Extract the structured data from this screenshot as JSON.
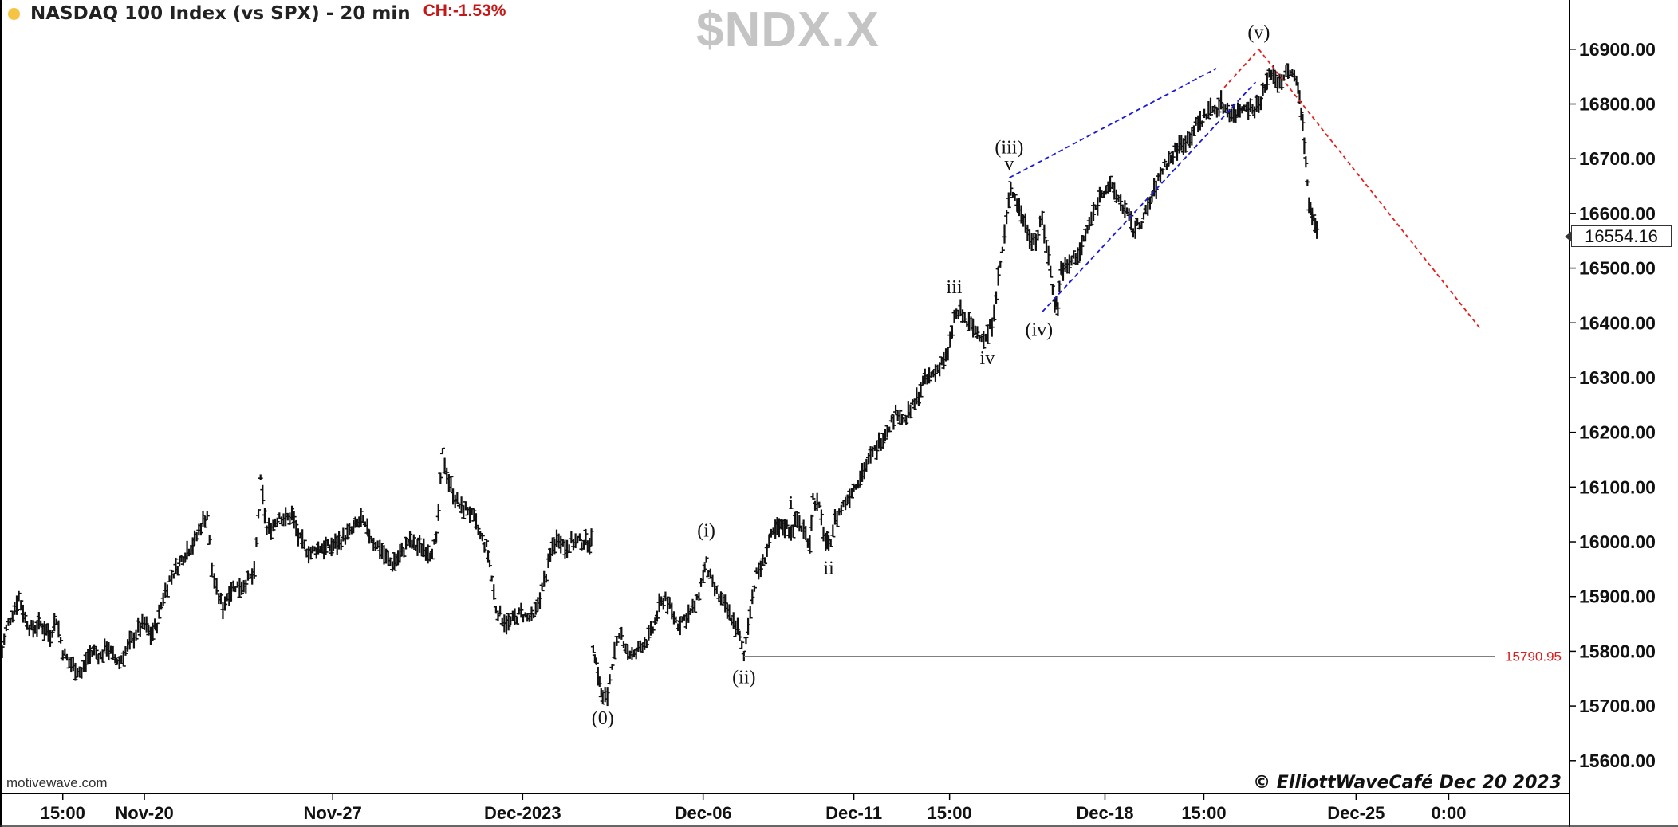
{
  "header": {
    "title": "NASDAQ 100 Index (vs SPX) - 20 min",
    "change": "CH:-1.53%"
  },
  "symbol": "$NDX.X",
  "watermark": "motivewave.com",
  "copyright": "© ElliottWaveCafé Dec 20 2023",
  "last_price": "16554.16",
  "colors": {
    "price_bars": "#111111",
    "channel": "#1a1ad6",
    "projection": "#e02020",
    "level_line": "#808080",
    "level_text": "#d42020",
    "axis": "#000000",
    "symbol_text": "#c4c4c4"
  },
  "chart_data": {
    "type": "line",
    "title": "NASDAQ 100 Index (vs SPX) - 20 min",
    "xlabel": "",
    "ylabel": "",
    "ylim": [
      15540,
      16990
    ],
    "y_ticks": [
      "16900.00",
      "16800.00",
      "16700.00",
      "16600.00",
      "16500.00",
      "16400.00",
      "16300.00",
      "16200.00",
      "16100.00",
      "16000.00",
      "15900.00",
      "15800.00",
      "15700.00",
      "15600.00"
    ],
    "x_tick_labels": [
      "15:00",
      "Nov-20",
      "Nov-27",
      "Dec-2023",
      "Dec-06",
      "Dec-11",
      "15:00",
      "Dec-18",
      "15:00",
      "Dec-25",
      "0:00"
    ],
    "x_index_range": [
      0,
      1000
    ],
    "x_ticks_index": [
      40,
      92,
      212,
      333,
      448,
      544,
      605,
      704,
      767,
      864,
      923
    ],
    "price_path": [
      [
        0,
        15780
      ],
      [
        4,
        15840
      ],
      [
        8,
        15870
      ],
      [
        12,
        15900
      ],
      [
        16,
        15860
      ],
      [
        20,
        15840
      ],
      [
        26,
        15850
      ],
      [
        32,
        15830
      ],
      [
        36,
        15860
      ],
      [
        40,
        15800
      ],
      [
        44,
        15780
      ],
      [
        48,
        15770
      ],
      [
        52,
        15760
      ],
      [
        56,
        15790
      ],
      [
        60,
        15800
      ],
      [
        64,
        15790
      ],
      [
        68,
        15810
      ],
      [
        72,
        15790
      ],
      [
        76,
        15780
      ],
      [
        80,
        15800
      ],
      [
        84,
        15820
      ],
      [
        88,
        15840
      ],
      [
        92,
        15850
      ],
      [
        96,
        15830
      ],
      [
        100,
        15850
      ],
      [
        104,
        15900
      ],
      [
        108,
        15930
      ],
      [
        112,
        15950
      ],
      [
        118,
        15980
      ],
      [
        124,
        16000
      ],
      [
        128,
        16030
      ],
      [
        132,
        16050
      ],
      [
        135,
        15950
      ],
      [
        138,
        15910
      ],
      [
        142,
        15880
      ],
      [
        146,
        15910
      ],
      [
        150,
        15920
      ],
      [
        154,
        15920
      ],
      [
        158,
        15930
      ],
      [
        162,
        15940
      ],
      [
        166,
        16110
      ],
      [
        170,
        16020
      ],
      [
        174,
        16030
      ],
      [
        178,
        16050
      ],
      [
        182,
        16040
      ],
      [
        186,
        16050
      ],
      [
        190,
        16010
      ],
      [
        194,
        15990
      ],
      [
        198,
        15980
      ],
      [
        204,
        15990
      ],
      [
        210,
        15990
      ],
      [
        216,
        16000
      ],
      [
        220,
        16010
      ],
      [
        224,
        16020
      ],
      [
        230,
        16040
      ],
      [
        234,
        16020
      ],
      [
        238,
        16000
      ],
      [
        242,
        15990
      ],
      [
        246,
        15970
      ],
      [
        250,
        15960
      ],
      [
        256,
        15980
      ],
      [
        260,
        16000
      ],
      [
        266,
        15990
      ],
      [
        270,
        15990
      ],
      [
        274,
        15980
      ],
      [
        278,
        16000
      ],
      [
        282,
        16160
      ],
      [
        286,
        16110
      ],
      [
        290,
        16080
      ],
      [
        294,
        16060
      ],
      [
        298,
        16060
      ],
      [
        302,
        16040
      ],
      [
        306,
        16010
      ],
      [
        310,
        15990
      ],
      [
        312,
        15960
      ],
      [
        316,
        15880
      ],
      [
        320,
        15860
      ],
      [
        324,
        15850
      ],
      [
        328,
        15860
      ],
      [
        332,
        15870
      ],
      [
        336,
        15860
      ],
      [
        340,
        15860
      ],
      [
        344,
        15900
      ],
      [
        348,
        15940
      ],
      [
        352,
        15990
      ],
      [
        356,
        16010
      ],
      [
        360,
        15990
      ],
      [
        364,
        16000
      ],
      [
        368,
        16000
      ],
      [
        372,
        16000
      ],
      [
        378,
        15810
      ],
      [
        380,
        15780
      ],
      [
        382,
        15740
      ],
      [
        384,
        15710
      ],
      [
        387,
        15720
      ],
      [
        390,
        15780
      ],
      [
        393,
        15810
      ],
      [
        396,
        15830
      ],
      [
        400,
        15800
      ],
      [
        404,
        15790
      ],
      [
        408,
        15810
      ],
      [
        412,
        15820
      ],
      [
        416,
        15840
      ],
      [
        420,
        15880
      ],
      [
        424,
        15900
      ],
      [
        428,
        15870
      ],
      [
        432,
        15850
      ],
      [
        436,
        15860
      ],
      [
        440,
        15870
      ],
      [
        444,
        15890
      ],
      [
        448,
        15940
      ],
      [
        450,
        15960
      ],
      [
        454,
        15920
      ],
      [
        458,
        15900
      ],
      [
        462,
        15880
      ],
      [
        466,
        15860
      ],
      [
        470,
        15840
      ],
      [
        474,
        15790
      ],
      [
        478,
        15880
      ],
      [
        482,
        15940
      ],
      [
        486,
        15960
      ],
      [
        490,
        16000
      ],
      [
        494,
        16020
      ],
      [
        500,
        16030
      ],
      [
        504,
        16020
      ],
      [
        508,
        16040
      ],
      [
        512,
        16020
      ],
      [
        516,
        16000
      ],
      [
        518,
        16080
      ],
      [
        522,
        16060
      ],
      [
        526,
        16000
      ],
      [
        528,
        15990
      ],
      [
        532,
        16040
      ],
      [
        536,
        16060
      ],
      [
        540,
        16080
      ],
      [
        544,
        16100
      ],
      [
        548,
        16120
      ],
      [
        552,
        16140
      ],
      [
        556,
        16160
      ],
      [
        560,
        16180
      ],
      [
        564,
        16200
      ],
      [
        568,
        16220
      ],
      [
        572,
        16240
      ],
      [
        576,
        16220
      ],
      [
        580,
        16240
      ],
      [
        584,
        16260
      ],
      [
        588,
        16290
      ],
      [
        592,
        16300
      ],
      [
        596,
        16310
      ],
      [
        600,
        16330
      ],
      [
        604,
        16340
      ],
      [
        608,
        16410
      ],
      [
        612,
        16420
      ],
      [
        616,
        16400
      ],
      [
        620,
        16390
      ],
      [
        624,
        16380
      ],
      [
        628,
        16370
      ],
      [
        632,
        16400
      ],
      [
        636,
        16480
      ],
      [
        640,
        16560
      ],
      [
        644,
        16650
      ],
      [
        648,
        16620
      ],
      [
        652,
        16590
      ],
      [
        656,
        16560
      ],
      [
        660,
        16550
      ],
      [
        664,
        16590
      ],
      [
        668,
        16520
      ],
      [
        672,
        16440
      ],
      [
        674,
        16430
      ],
      [
        676,
        16500
      ],
      [
        680,
        16500
      ],
      [
        684,
        16520
      ],
      [
        688,
        16530
      ],
      [
        694,
        16580
      ],
      [
        698,
        16610
      ],
      [
        702,
        16640
      ],
      [
        706,
        16650
      ],
      [
        710,
        16640
      ],
      [
        714,
        16620
      ],
      [
        718,
        16600
      ],
      [
        722,
        16570
      ],
      [
        726,
        16580
      ],
      [
        730,
        16600
      ],
      [
        734,
        16630
      ],
      [
        738,
        16660
      ],
      [
        742,
        16690
      ],
      [
        746,
        16700
      ],
      [
        750,
        16720
      ],
      [
        754,
        16730
      ],
      [
        758,
        16740
      ],
      [
        762,
        16760
      ],
      [
        766,
        16770
      ],
      [
        770,
        16790
      ],
      [
        774,
        16790
      ],
      [
        778,
        16800
      ],
      [
        782,
        16790
      ],
      [
        786,
        16780
      ],
      [
        790,
        16790
      ],
      [
        794,
        16800
      ],
      [
        798,
        16790
      ],
      [
        802,
        16800
      ],
      [
        806,
        16830
      ],
      [
        810,
        16860
      ],
      [
        814,
        16840
      ],
      [
        818,
        16850
      ],
      [
        822,
        16860
      ],
      [
        826,
        16840
      ],
      [
        828,
        16820
      ],
      [
        830,
        16760
      ],
      [
        832,
        16700
      ],
      [
        834,
        16610
      ],
      [
        836,
        16600
      ],
      [
        838,
        16580
      ],
      [
        840,
        16560
      ]
    ],
    "level": {
      "value": 15790.95,
      "label": "15790.95",
      "x_start": 474
    },
    "wave_labels": [
      {
        "text": "(0)",
        "x": 384,
        "y": 15710,
        "pos": "below"
      },
      {
        "text": "(i)",
        "x": 450,
        "y": 15995,
        "pos": "above"
      },
      {
        "text": "(ii)",
        "x": 474,
        "y": 15785,
        "pos": "below"
      },
      {
        "text": "i",
        "x": 504,
        "y": 16045,
        "pos": "above"
      },
      {
        "text": "ii",
        "x": 528,
        "y": 15985,
        "pos": "below"
      },
      {
        "text": "iii",
        "x": 608,
        "y": 16440,
        "pos": "above"
      },
      {
        "text": "iv",
        "x": 629,
        "y": 16368,
        "pos": "below"
      },
      {
        "text": "v",
        "x": 643,
        "y": 16665,
        "pos": "above"
      },
      {
        "text": "(iii)",
        "x": 643,
        "y": 16695,
        "pos": "above"
      },
      {
        "text": "(iv)",
        "x": 662,
        "y": 16420,
        "pos": "below"
      },
      {
        "text": "(v)",
        "x": 802,
        "y": 16905,
        "pos": "above"
      }
    ],
    "channel_lines": [
      [
        [
          643,
          16665
        ],
        [
          775,
          16865
        ]
      ],
      [
        [
          664,
          16420
        ],
        [
          800,
          16840
        ]
      ]
    ],
    "projection_lines": [
      [
        [
          780,
          16830
        ],
        [
          802,
          16900
        ]
      ],
      [
        [
          802,
          16900
        ],
        [
          943,
          16390
        ]
      ]
    ]
  }
}
